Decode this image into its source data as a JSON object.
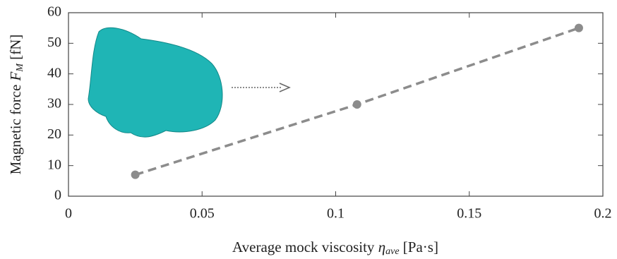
{
  "chart_data": {
    "type": "line",
    "xlabel": {
      "main": "Average mock viscosity ",
      "symbol": "η",
      "subscript": "ave",
      "unit": " [Pa·s]"
    },
    "ylabel": {
      "main": "Magnetic force ",
      "symbol": "F",
      "subscript": "M",
      "unit": " [fN]"
    },
    "x": [
      0.025,
      0.108,
      0.191
    ],
    "series": [
      {
        "name": "Magnetic force",
        "color": "#8c8c8c",
        "values": [
          7,
          30,
          55
        ]
      }
    ],
    "xlim": [
      0,
      0.2
    ],
    "xticks": [
      0,
      0.05,
      0.1,
      0.15,
      0.2
    ],
    "ylim": [
      0,
      60
    ],
    "yticks": [
      0,
      10,
      20,
      30,
      40,
      50,
      60
    ],
    "line_style": "dashed",
    "grid": false
  }
}
